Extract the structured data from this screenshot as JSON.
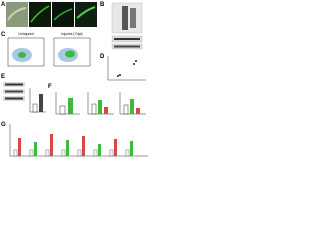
{
  "panels": {
    "a": "A",
    "b": "B",
    "c": "C",
    "d": "D",
    "e": "E",
    "f": "F",
    "g": "G"
  },
  "flow": {
    "left_title": "Uninjured",
    "right_title": "Injured (7dpi)"
  }
}
